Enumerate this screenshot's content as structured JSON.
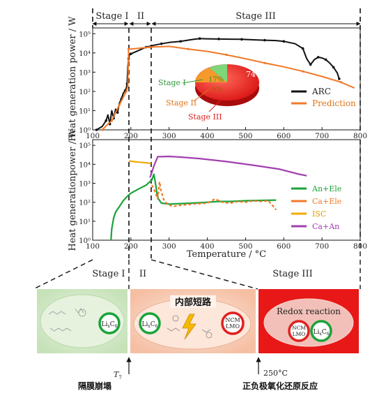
{
  "stages": {
    "s1": "Stage I",
    "s2": "II",
    "s3": "Stage III"
  },
  "bottom_stages": {
    "s1": "Stage I",
    "s2": "II",
    "s3": "Stage III"
  },
  "colors": {
    "black": "#111111",
    "orange": "#f07828",
    "green": "#1aa33a",
    "isc": "#f2a900",
    "purple": "#a23fb0",
    "pie_red": "#e82020",
    "pie_green": "#7ed67a",
    "pie_orange": "#f59a2a",
    "panel_green": "#cfe8c4",
    "panel_peach": "#f7c8b0",
    "panel_red": "#e81818"
  },
  "chart_data": [
    {
      "type": "line",
      "ylabel": "Heat generation power / W",
      "xlim": [
        100,
        800
      ],
      "ylim_log10": [
        0,
        5.3
      ],
      "yscale": "log",
      "xticks": [
        "100",
        "200",
        "300",
        "400",
        "500",
        "600",
        "700",
        "800"
      ],
      "yticks": [
        "10⁰",
        "10¹",
        "10²",
        "10³",
        "10⁴",
        "10⁵"
      ],
      "legend_placement": "right",
      "series": [
        {
          "name": "ARC",
          "color": "#111111",
          "points": [
            [
              110,
              1
            ],
            [
              125,
              1.5
            ],
            [
              135,
              3
            ],
            [
              140,
              6
            ],
            [
              145,
              2
            ],
            [
              150,
              10
            ],
            [
              155,
              4
            ],
            [
              160,
              12
            ],
            [
              165,
              8
            ],
            [
              170,
              25
            ],
            [
              175,
              40
            ],
            [
              180,
              80
            ],
            [
              185,
              110
            ],
            [
              188,
              150
            ],
            [
              190,
              250
            ],
            [
              192,
              2000
            ],
            [
              194,
              5000
            ],
            [
              196,
              8000
            ],
            [
              200,
              9000
            ],
            [
              215,
              12000
            ],
            [
              240,
              20000
            ],
            [
              260,
              25000
            ],
            [
              280,
              30000
            ],
            [
              300,
              35000
            ],
            [
              330,
              40000
            ],
            [
              360,
              50000
            ],
            [
              380,
              56000
            ],
            [
              400,
              54000
            ],
            [
              430,
              53000
            ],
            [
              460,
              52000
            ],
            [
              490,
              51000
            ],
            [
              520,
              48000
            ],
            [
              550,
              46000
            ],
            [
              580,
              44000
            ],
            [
              600,
              40000
            ],
            [
              630,
              30000
            ],
            [
              650,
              17000
            ],
            [
              660,
              5000
            ],
            [
              670,
              2500
            ],
            [
              680,
              4500
            ],
            [
              690,
              6000
            ],
            [
              700,
              5500
            ],
            [
              710,
              4500
            ],
            [
              720,
              3000
            ],
            [
              730,
              1800
            ],
            [
              740,
              900
            ],
            [
              745,
              450
            ]
          ]
        },
        {
          "name": "Prediction",
          "color": "#f07828",
          "points": [
            [
              125,
              1
            ],
            [
              140,
              2
            ],
            [
              150,
              3
            ],
            [
              160,
              8
            ],
            [
              170,
              20
            ],
            [
              180,
              50
            ],
            [
              188,
              100
            ],
            [
              192,
              200
            ],
            [
              194,
              16000
            ],
            [
              200,
              16000
            ],
            [
              250,
              20000
            ],
            [
              300,
              22000
            ],
            [
              350,
              16000
            ],
            [
              400,
              12000
            ],
            [
              450,
              8000
            ],
            [
              500,
              5000
            ],
            [
              550,
              3000
            ],
            [
              600,
              1900
            ],
            [
              650,
              1100
            ],
            [
              700,
              600
            ],
            [
              750,
              300
            ],
            [
              785,
              150
            ]
          ]
        }
      ],
      "inset_pie": [
        {
          "label": "Stage I",
          "value": 17,
          "text": "17%",
          "color": "#7ed67a"
        },
        {
          "label": "Stage II",
          "value": 9,
          "text": "9%",
          "color": "#f59a2a"
        },
        {
          "label": "Stage III",
          "value": 74,
          "text": "74%",
          "color": "#e82020"
        }
      ]
    },
    {
      "type": "line",
      "ylabel": "Heat generationpower / W",
      "xlabel": "Temperature / °C",
      "xlim": [
        100,
        800
      ],
      "ylim_log10": [
        0,
        5.3
      ],
      "yscale": "log",
      "xticks": [
        "100",
        "200",
        "300",
        "400",
        "500",
        "600",
        "700",
        "800"
      ],
      "yticks": [
        "10⁰",
        "10¹",
        "10²",
        "10³",
        "10⁴",
        "10⁵"
      ],
      "legend_placement": "right",
      "series": [
        {
          "name": "An+Ele",
          "color": "#1aa33a",
          "points": [
            [
              148,
              1
            ],
            [
              150,
              4
            ],
            [
              155,
              15
            ],
            [
              160,
              30
            ],
            [
              170,
              60
            ],
            [
              180,
              120
            ],
            [
              190,
              200
            ],
            [
              200,
              300
            ],
            [
              220,
              500
            ],
            [
              240,
              800
            ],
            [
              255,
              1500
            ],
            [
              260,
              3000
            ],
            [
              263,
              1500
            ],
            [
              268,
              300
            ],
            [
              272,
              150
            ],
            [
              280,
              90
            ],
            [
              300,
              80
            ],
            [
              330,
              85
            ],
            [
              360,
              90
            ],
            [
              400,
              100
            ],
            [
              430,
              110
            ],
            [
              460,
              110
            ],
            [
              500,
              120
            ],
            [
              540,
              125
            ],
            [
              580,
              130
            ]
          ]
        },
        {
          "name": "Ca+Ele",
          "color": "#f07828",
          "points": [
            [
              255,
              800
            ],
            [
              262,
              400
            ],
            [
              270,
              150
            ],
            [
              275,
              1200
            ],
            [
              278,
              500
            ],
            [
              285,
              150
            ],
            [
              295,
              80
            ],
            [
              310,
              60
            ],
            [
              330,
              70
            ],
            [
              360,
              80
            ],
            [
              400,
              90
            ],
            [
              420,
              150
            ],
            [
              440,
              100
            ],
            [
              460,
              90
            ],
            [
              480,
              110
            ],
            [
              500,
              100
            ],
            [
              520,
              120
            ],
            [
              540,
              110
            ],
            [
              560,
              120
            ],
            [
              580,
              40
            ]
          ]
        },
        {
          "name": "ISC",
          "color": "#f2a900",
          "points": [
            [
              195,
              15000
            ],
            [
              200,
              14500
            ],
            [
              220,
              13000
            ],
            [
              240,
              12000
            ],
            [
              253,
              11000
            ]
          ]
        },
        {
          "name": "Ca+An",
          "color": "#a23fb0",
          "points": [
            [
              250,
              2000
            ],
            [
              260,
              8000
            ],
            [
              270,
              25000
            ],
            [
              300,
              26000
            ],
            [
              330,
              24000
            ],
            [
              380,
              20000
            ],
            [
              450,
              14000
            ],
            [
              520,
              9000
            ],
            [
              590,
              5500
            ],
            [
              640,
              3000
            ],
            [
              660,
              2500
            ]
          ]
        }
      ]
    }
  ],
  "pie_labels": {
    "s1": "Stage I",
    "s2": "Stage II",
    "s3": "Stage III",
    "p1": "17%",
    "p2": "9%",
    "p3": "74%"
  },
  "legend_top": {
    "arc": "ARC",
    "pred": "Prediction"
  },
  "legend_bottom": {
    "a": "An+Ele",
    "b": "Ca+Ele",
    "c": "ISC",
    "d": "Ca+An"
  },
  "bottom_panels": {
    "middle_title": "内部短路",
    "right_title": "Redox reaction",
    "li_c6": "Li",
    "li_c6_sub": "x",
    "li_c6_tail": "C",
    "li_c6_tail_sub": "6",
    "ncm_lmo_1": "NCM",
    "ncm_lmo_2": "LMO"
  },
  "annotations": {
    "t7": "T",
    "t7_sub": "7",
    "collapse": "隔膜崩塌",
    "temp250": "250°C",
    "redox_cn": "正负极氧化还原反应"
  }
}
